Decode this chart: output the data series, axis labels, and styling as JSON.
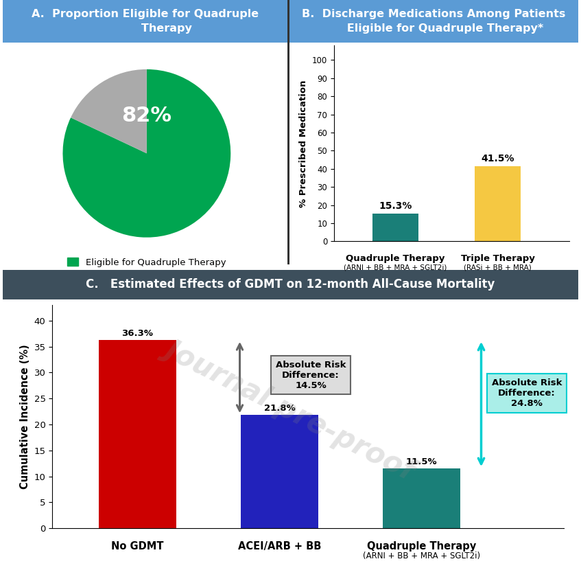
{
  "panel_A_title": "A.  Proportion Eligible for Quadruple\n           Therapy",
  "panel_B_title": "B.  Discharge Medications Among Patients\n      Eligible for Quadruple Therapy*",
  "panel_C_title": "C.   Estimated Effects of GDMT on 12-month All-Cause Mortality",
  "header_A_color": "#5B9BD5",
  "header_B_color": "#5B9BD5",
  "header_C_color": "#3D4F5C",
  "pie_values": [
    82,
    18
  ],
  "pie_colors": [
    "#00A550",
    "#AAAAAA"
  ],
  "pie_label": "82%",
  "pie_legend": "Eligible for Quadruple Therapy",
  "pie_legend_color": "#00A550",
  "bar_B_values": [
    15.3,
    41.5
  ],
  "bar_B_colors": [
    "#1A7F78",
    "#F5C842"
  ],
  "bar_B_labels": [
    "15.3%",
    "41.5%"
  ],
  "bar_B_xtick_main": [
    "Quadruple Therapy",
    "Triple Therapy"
  ],
  "bar_B_xtick_sub": [
    "(ARNI + BB + MRA + SGLT2i)",
    "(RASi + BB + MRA)"
  ],
  "bar_B_ylabel": "% Prescribed Medication",
  "bar_B_yticks": [
    0,
    10,
    20,
    30,
    40,
    50,
    60,
    70,
    80,
    90,
    100
  ],
  "bar_C_values": [
    36.3,
    21.8,
    11.5
  ],
  "bar_C_colors": [
    "#CC0000",
    "#2222BB",
    "#1A7F78"
  ],
  "bar_C_labels": [
    "36.3%",
    "21.8%",
    "11.5%"
  ],
  "bar_C_xtick_main": [
    "No GDMT",
    "ACEI/ARB + BB",
    "Quadruple Therapy"
  ],
  "bar_C_xtick_sub": [
    "",
    "",
    "(ARNI + BB + MRA + SGLT2i)"
  ],
  "bar_C_ylabel": "Cumulative Incidence (%)",
  "bar_C_yticks": [
    0,
    5,
    10,
    15,
    20,
    25,
    30,
    35,
    40
  ],
  "arrow1_text": "Absolute Risk\nDifference:\n14.5%",
  "arrow1_color": "#666666",
  "arrow1_box_color": "#DDDDDD",
  "arrow2_text": "Absolute Risk\nDifference:\n24.8%",
  "arrow2_color": "#00CED1",
  "arrow2_box_color": "#AAEEE8",
  "watermark": "Journal pre-proof"
}
